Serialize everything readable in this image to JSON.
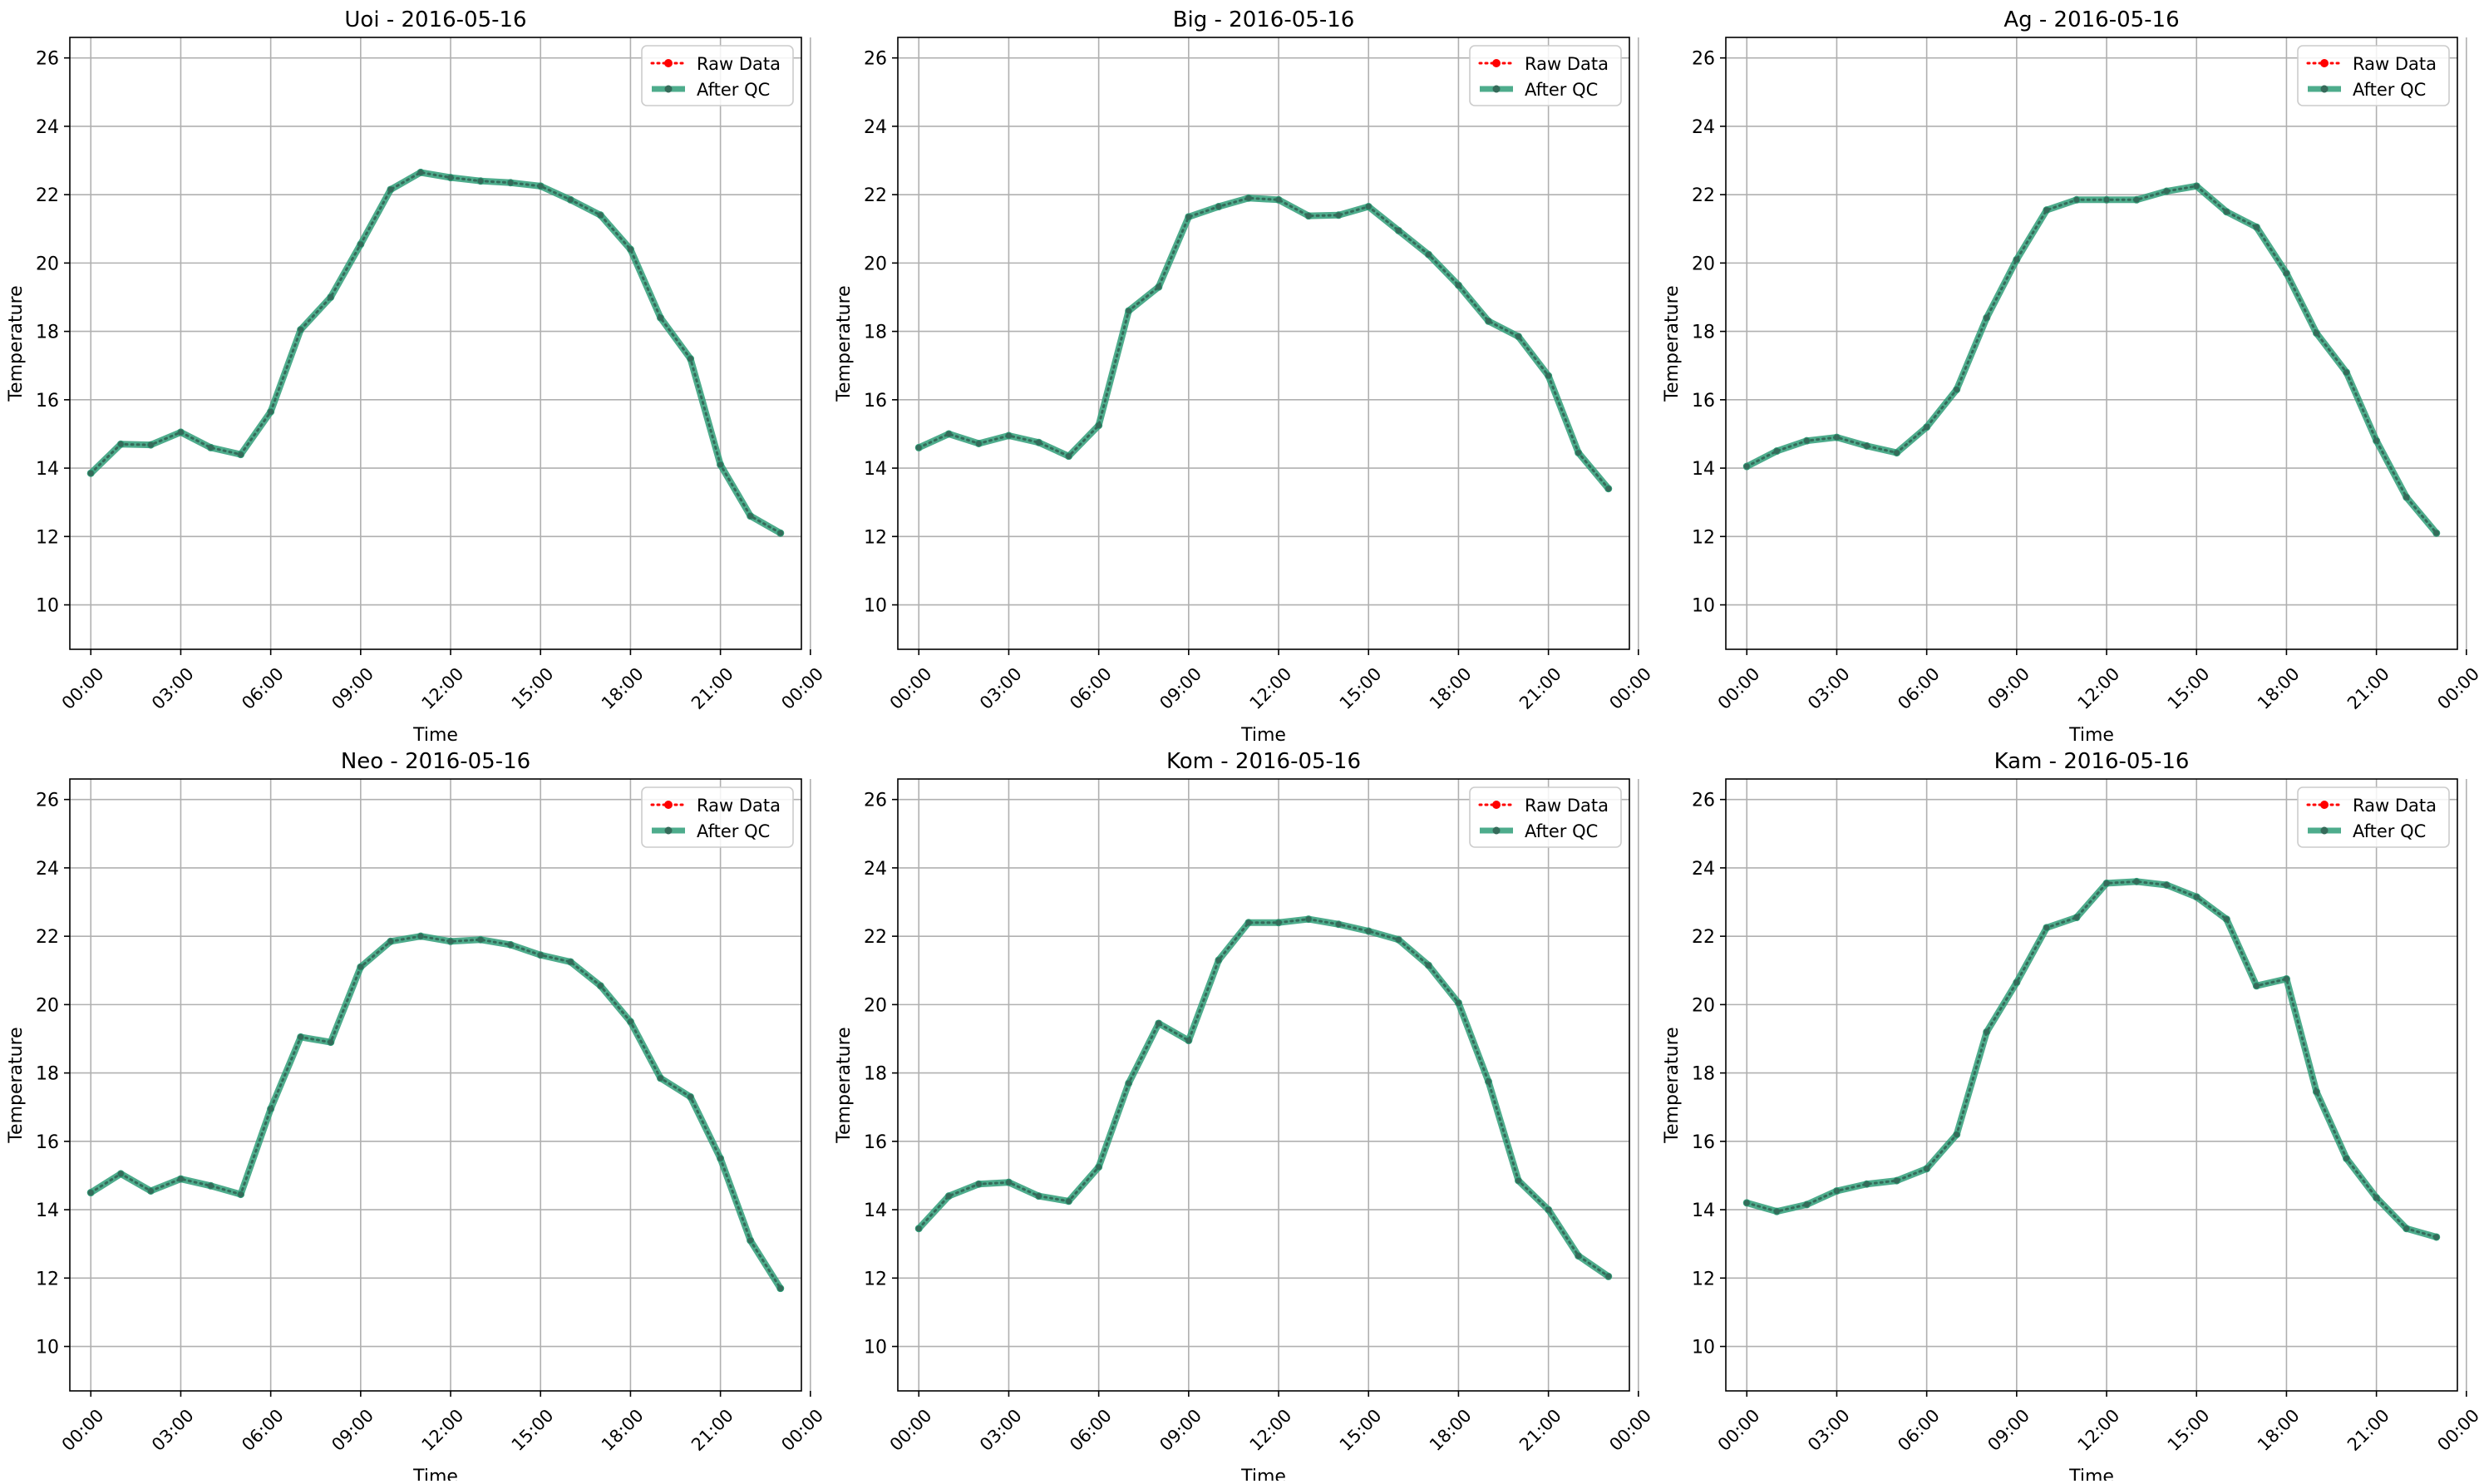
{
  "figure": {
    "background": "#ffffff"
  },
  "legend": {
    "raw_label": "Raw Data",
    "qc_label": "After QC",
    "raw_color": "#ff0000",
    "qc_color": "#2f9e78",
    "marker_color": "#356b5a",
    "placement": "upper-right"
  },
  "axes_common": {
    "xlabel": "Time",
    "ylabel": "Temperature",
    "ylim": [
      8.7,
      26.6
    ],
    "xlim": [
      -0.7,
      23.7
    ],
    "yticks": [
      10,
      12,
      14,
      16,
      18,
      20,
      22,
      24,
      26
    ],
    "xticks": [
      0,
      3,
      6,
      9,
      12,
      15,
      18,
      21,
      24
    ],
    "xtick_labels": [
      "00:00",
      "03:00",
      "06:00",
      "09:00",
      "12:00",
      "15:00",
      "18:00",
      "21:00",
      "00:00"
    ],
    "grid": true,
    "grid_color": "#b0b0b0"
  },
  "chart_data": [
    {
      "type": "line",
      "title": "Uoi - 2016-05-16",
      "x": [
        0,
        1,
        2,
        3,
        4,
        5,
        6,
        7,
        8,
        9,
        10,
        11,
        12,
        13,
        14,
        15,
        16,
        17,
        18,
        19,
        20,
        21,
        22,
        23
      ],
      "series": [
        {
          "name": "Raw Data",
          "values": [
            13.85,
            14.7,
            14.68,
            15.05,
            14.6,
            14.4,
            15.65,
            18.05,
            19.0,
            20.55,
            22.15,
            22.65,
            22.5,
            22.4,
            22.35,
            22.25,
            21.85,
            21.4,
            20.4,
            18.4,
            17.2,
            14.1,
            12.6,
            12.1
          ]
        },
        {
          "name": "After QC",
          "values": [
            13.85,
            14.7,
            14.68,
            15.05,
            14.6,
            14.4,
            15.65,
            18.05,
            19.0,
            20.55,
            22.15,
            22.65,
            22.5,
            22.4,
            22.35,
            22.25,
            21.85,
            21.4,
            20.4,
            18.4,
            17.2,
            14.1,
            12.6,
            12.1
          ]
        }
      ]
    },
    {
      "type": "line",
      "title": "Big - 2016-05-16",
      "x": [
        0,
        1,
        2,
        3,
        4,
        5,
        6,
        7,
        8,
        9,
        10,
        11,
        12,
        13,
        14,
        15,
        16,
        17,
        18,
        19,
        20,
        21,
        22,
        23
      ],
      "series": [
        {
          "name": "Raw Data",
          "values": [
            14.6,
            15.0,
            14.72,
            14.95,
            14.75,
            14.35,
            15.25,
            18.6,
            19.3,
            21.35,
            21.65,
            21.9,
            21.85,
            21.38,
            21.4,
            21.65,
            20.95,
            20.25,
            19.35,
            18.3,
            17.85,
            16.7,
            14.45,
            13.4
          ]
        },
        {
          "name": "After QC",
          "values": [
            14.6,
            15.0,
            14.72,
            14.95,
            14.75,
            14.35,
            15.25,
            18.6,
            19.3,
            21.35,
            21.65,
            21.9,
            21.85,
            21.38,
            21.4,
            21.65,
            20.95,
            20.25,
            19.35,
            18.3,
            17.85,
            16.7,
            14.45,
            13.4
          ]
        }
      ]
    },
    {
      "type": "line",
      "title": "Ag - 2016-05-16",
      "x": [
        0,
        1,
        2,
        3,
        4,
        5,
        6,
        7,
        8,
        9,
        10,
        11,
        12,
        13,
        14,
        15,
        16,
        17,
        18,
        19,
        20,
        21,
        22,
        23
      ],
      "series": [
        {
          "name": "Raw Data",
          "values": [
            14.05,
            14.5,
            14.8,
            14.9,
            14.65,
            14.45,
            15.2,
            16.3,
            18.4,
            20.1,
            21.55,
            21.85,
            21.85,
            21.85,
            22.1,
            22.25,
            21.5,
            21.05,
            19.7,
            17.95,
            16.8,
            14.8,
            13.15,
            12.1
          ]
        },
        {
          "name": "After QC",
          "values": [
            14.05,
            14.5,
            14.8,
            14.9,
            14.65,
            14.45,
            15.2,
            16.3,
            18.4,
            20.1,
            21.55,
            21.85,
            21.85,
            21.85,
            22.1,
            22.25,
            21.5,
            21.05,
            19.7,
            17.95,
            16.8,
            14.8,
            13.15,
            12.1
          ]
        }
      ]
    },
    {
      "type": "line",
      "title": "Neo - 2016-05-16",
      "x": [
        0,
        1,
        2,
        3,
        4,
        5,
        6,
        7,
        8,
        9,
        10,
        11,
        12,
        13,
        14,
        15,
        16,
        17,
        18,
        19,
        20,
        21,
        22,
        23
      ],
      "series": [
        {
          "name": "Raw Data",
          "values": [
            14.5,
            15.05,
            14.55,
            14.9,
            14.7,
            14.45,
            16.95,
            19.05,
            18.9,
            21.1,
            21.85,
            22.0,
            21.85,
            21.9,
            21.75,
            21.45,
            21.25,
            20.55,
            19.5,
            17.85,
            17.3,
            15.5,
            13.1,
            11.7
          ]
        },
        {
          "name": "After QC",
          "values": [
            14.5,
            15.05,
            14.55,
            14.9,
            14.7,
            14.45,
            16.95,
            19.05,
            18.9,
            21.1,
            21.85,
            22.0,
            21.85,
            21.9,
            21.75,
            21.45,
            21.25,
            20.55,
            19.5,
            17.85,
            17.3,
            15.5,
            13.1,
            11.7
          ]
        }
      ]
    },
    {
      "type": "line",
      "title": "Kom - 2016-05-16",
      "x": [
        0,
        1,
        2,
        3,
        4,
        5,
        6,
        7,
        8,
        9,
        10,
        11,
        12,
        13,
        14,
        15,
        16,
        17,
        18,
        19,
        20,
        21,
        22,
        23
      ],
      "series": [
        {
          "name": "Raw Data",
          "values": [
            13.45,
            14.4,
            14.75,
            14.8,
            14.4,
            14.25,
            15.25,
            17.7,
            19.45,
            18.95,
            21.3,
            22.4,
            22.4,
            22.5,
            22.35,
            22.15,
            21.9,
            21.15,
            20.05,
            17.75,
            14.85,
            14.0,
            12.65,
            12.05
          ]
        },
        {
          "name": "After QC",
          "values": [
            13.45,
            14.4,
            14.75,
            14.8,
            14.4,
            14.25,
            15.25,
            17.7,
            19.45,
            18.95,
            21.3,
            22.4,
            22.4,
            22.5,
            22.35,
            22.15,
            21.9,
            21.15,
            20.05,
            17.75,
            14.85,
            14.0,
            12.65,
            12.05
          ]
        }
      ]
    },
    {
      "type": "line",
      "title": "Kam - 2016-05-16",
      "x": [
        0,
        1,
        2,
        3,
        4,
        5,
        6,
        7,
        8,
        9,
        10,
        11,
        12,
        13,
        14,
        15,
        16,
        17,
        18,
        19,
        20,
        21,
        22,
        23
      ],
      "series": [
        {
          "name": "Raw Data",
          "values": [
            14.2,
            13.95,
            14.15,
            14.55,
            14.75,
            14.85,
            15.2,
            16.2,
            19.2,
            20.65,
            22.25,
            22.55,
            23.55,
            23.6,
            23.5,
            23.15,
            22.5,
            20.55,
            20.75,
            17.45,
            15.5,
            14.35,
            13.45,
            13.2
          ]
        },
        {
          "name": "After QC",
          "values": [
            14.2,
            13.95,
            14.15,
            14.55,
            14.75,
            14.85,
            15.2,
            16.2,
            19.2,
            20.65,
            22.25,
            22.55,
            23.55,
            23.6,
            23.5,
            23.15,
            22.5,
            20.55,
            20.75,
            17.45,
            15.5,
            14.35,
            13.45,
            13.2
          ]
        }
      ]
    }
  ]
}
